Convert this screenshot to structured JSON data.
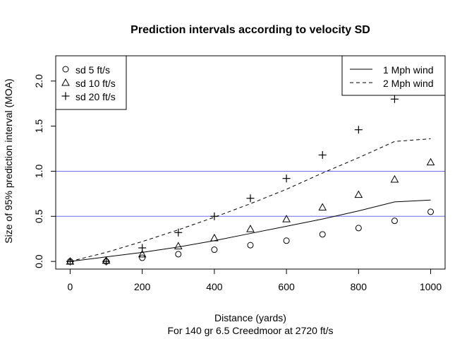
{
  "chart_data": {
    "type": "scatter",
    "title": "Prediction intervals according to velocity SD",
    "xlabel": "Distance (yards)",
    "xlabel2": "For 140 gr 6.5 Creedmoor at 2720 ft/s",
    "ylabel": "Size of 95% prediction interval (MOA)",
    "xlim": [
      -40,
      1040
    ],
    "ylim": [
      -0.085,
      2.28
    ],
    "xticks": [
      0,
      200,
      400,
      600,
      800,
      1000
    ],
    "xtick_labels": [
      "0",
      "200",
      "400",
      "600",
      "800",
      "1000"
    ],
    "yticks": [
      0,
      0.5,
      1,
      1.5,
      2
    ],
    "ytick_labels": [
      "0.0",
      "0.5",
      "1.0",
      "1.5",
      "2.0"
    ],
    "hlines": [
      0.5,
      1.0
    ],
    "hline_color": "#6f6ff5",
    "x": [
      0,
      100,
      200,
      300,
      400,
      500,
      600,
      700,
      800,
      900,
      1000
    ],
    "series": [
      {
        "name": "sd 5 ft/s",
        "marker": "circle",
        "values": [
          0,
          0,
          0.04,
          0.08,
          0.13,
          0.18,
          0.23,
          0.3,
          0.37,
          0.45,
          0.55
        ]
      },
      {
        "name": "sd 10 ft/s",
        "marker": "triangle",
        "values": [
          0,
          0.01,
          0.08,
          0.17,
          0.26,
          0.36,
          0.47,
          0.6,
          0.74,
          0.91,
          1.1
        ]
      },
      {
        "name": "sd 20 ft/s",
        "marker": "plus",
        "values": [
          0,
          0,
          0.15,
          0.32,
          0.5,
          0.7,
          0.92,
          1.18,
          1.46,
          1.8,
          2.2
        ]
      }
    ],
    "lines": [
      {
        "name": "1 Mph wind",
        "dash": "solid",
        "x": [
          0,
          100,
          200,
          300,
          400,
          500,
          600,
          700,
          800,
          900,
          1000
        ],
        "values": [
          0,
          0.05,
          0.1,
          0.16,
          0.23,
          0.31,
          0.39,
          0.47,
          0.56,
          0.66,
          0.68
        ]
      },
      {
        "name": "2 Mph wind",
        "dash": "dashed",
        "x": [
          0,
          100,
          200,
          300,
          400,
          500,
          600,
          700,
          800,
          900,
          1000
        ],
        "values": [
          0,
          0.1,
          0.22,
          0.35,
          0.49,
          0.64,
          0.8,
          0.98,
          1.15,
          1.33,
          1.36
        ]
      }
    ],
    "legend_markers_position": "top-left",
    "legend_lines_position": "top-right",
    "grid": false
  }
}
